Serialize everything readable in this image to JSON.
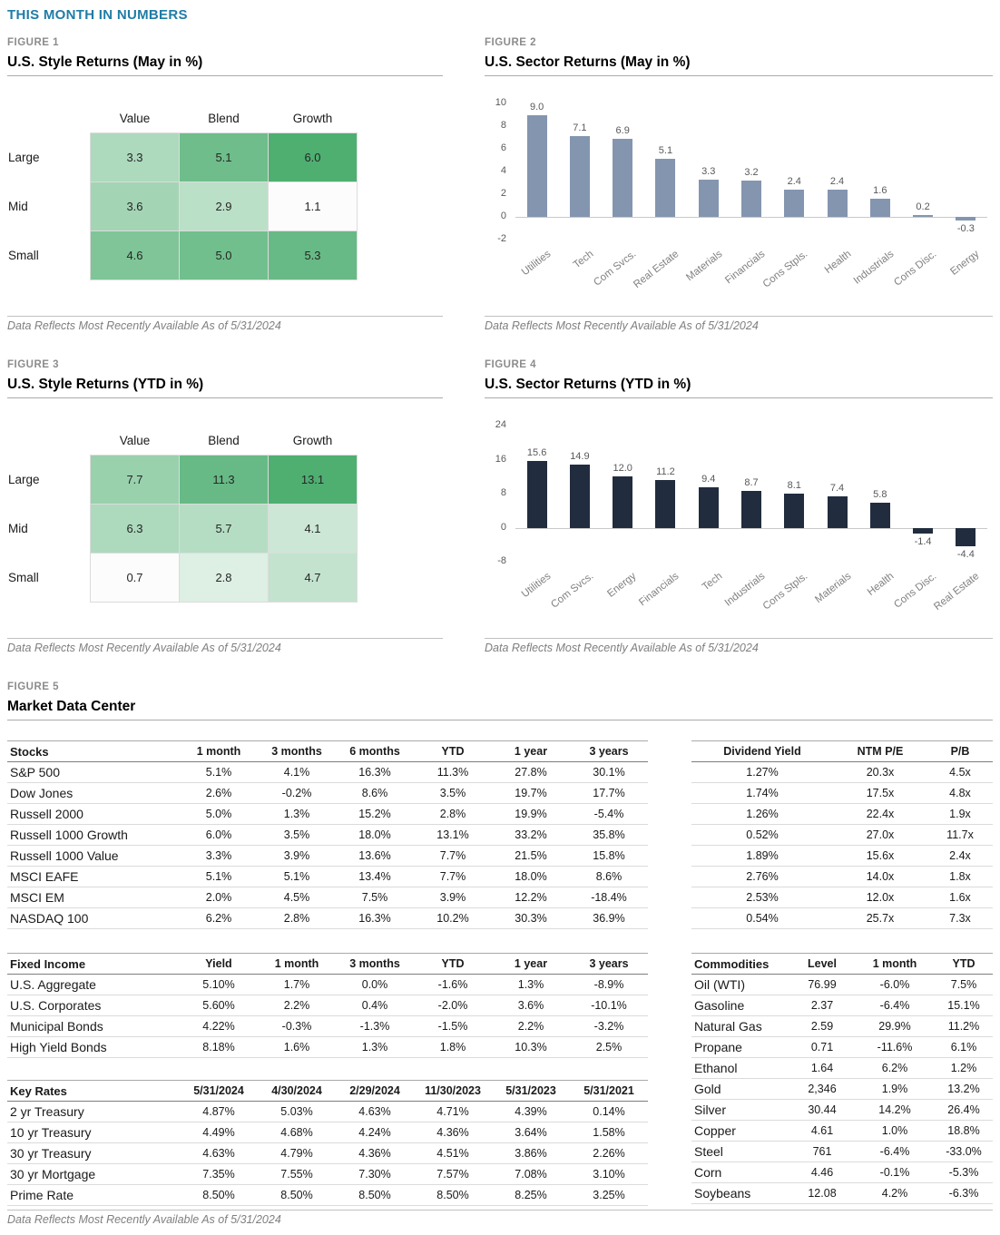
{
  "page_title": "THIS MONTH IN NUMBERS",
  "footnote": "Data Reflects Most Recently Available As of 5/31/2024",
  "figure_labels": {
    "fig1": "FIGURE 1",
    "fig2": "FIGURE 2",
    "fig3": "FIGURE 3",
    "fig4": "FIGURE 4",
    "fig5": "FIGURE 5"
  },
  "figure_titles": {
    "fig1": "U.S. Style Returns (May in %)",
    "fig2": "U.S. Sector Returns (May in %)",
    "fig3": "U.S. Style Returns (YTD in %)",
    "fig4": "U.S. Sector Returns (YTD in %)",
    "fig5": "Market Data Center"
  },
  "colors": {
    "accent_title": "#1F7CA6",
    "figure_label": "#8C8C8C",
    "heat_low": "#FBFCFB",
    "heat_high": "#4EAF71",
    "bar_may": "#8495AF",
    "bar_ytd": "#212D3E"
  },
  "chart_data": [
    {
      "id": "style_may",
      "type": "heatmap",
      "title": "U.S. Style Returns (May in %)",
      "columns": [
        "Value",
        "Blend",
        "Growth"
      ],
      "rows": [
        "Large",
        "Mid",
        "Small"
      ],
      "values": [
        [
          3.3,
          5.1,
          6.0
        ],
        [
          3.6,
          2.9,
          1.1
        ],
        [
          4.6,
          5.0,
          5.3
        ]
      ]
    },
    {
      "id": "sector_may",
      "type": "bar",
      "title": "U.S. Sector Returns (May in %)",
      "categories": [
        "Utilities",
        "Tech",
        "Com Svcs.",
        "Real Estate",
        "Materials",
        "Financials",
        "Cons Stpls.",
        "Health",
        "Industrials",
        "Cons Disc.",
        "Energy"
      ],
      "values": [
        9.0,
        7.1,
        6.9,
        5.1,
        3.3,
        3.2,
        2.4,
        2.4,
        1.6,
        0.2,
        -0.3
      ],
      "ylim": [
        -2,
        10
      ],
      "yticks": [
        10,
        8,
        6,
        4,
        2,
        0,
        -2
      ],
      "bar_color": "#8495AF",
      "grid": false,
      "legend": false
    },
    {
      "id": "style_ytd",
      "type": "heatmap",
      "title": "U.S. Style Returns (YTD in %)",
      "columns": [
        "Value",
        "Blend",
        "Growth"
      ],
      "rows": [
        "Large",
        "Mid",
        "Small"
      ],
      "values": [
        [
          7.7,
          11.3,
          13.1
        ],
        [
          6.3,
          5.7,
          4.1
        ],
        [
          0.7,
          2.8,
          4.7
        ]
      ]
    },
    {
      "id": "sector_ytd",
      "type": "bar",
      "title": "U.S. Sector Returns (YTD in %)",
      "categories": [
        "Utilities",
        "Com Svcs.",
        "Energy",
        "Financials",
        "Tech",
        "Industrials",
        "Cons Stpls.",
        "Materials",
        "Health",
        "Cons Disc.",
        "Real Estate"
      ],
      "values": [
        15.6,
        14.9,
        12.0,
        11.2,
        9.4,
        8.7,
        8.1,
        7.4,
        5.8,
        -1.4,
        -4.4
      ],
      "ylim": [
        -8,
        24
      ],
      "yticks": [
        24,
        16,
        8,
        0,
        -8
      ],
      "bar_color": "#212D3E",
      "grid": false,
      "legend": false
    }
  ],
  "tables": {
    "stocks": {
      "name_header": "Stocks",
      "col_headers": [
        "1 month",
        "3 months",
        "6 months",
        "YTD",
        "1 year",
        "3 years"
      ],
      "rows": [
        [
          "S&P 500",
          "5.1%",
          "4.1%",
          "16.3%",
          "11.3%",
          "27.8%",
          "30.1%"
        ],
        [
          "Dow Jones",
          "2.6%",
          "-0.2%",
          "8.6%",
          "3.5%",
          "19.7%",
          "17.7%"
        ],
        [
          "Russell 2000",
          "5.0%",
          "1.3%",
          "15.2%",
          "2.8%",
          "19.9%",
          "-5.4%"
        ],
        [
          "Russell 1000 Growth",
          "6.0%",
          "3.5%",
          "18.0%",
          "13.1%",
          "33.2%",
          "35.8%"
        ],
        [
          "Russell 1000 Value",
          "3.3%",
          "3.9%",
          "13.6%",
          "7.7%",
          "21.5%",
          "15.8%"
        ],
        [
          "MSCI EAFE",
          "5.1%",
          "5.1%",
          "13.4%",
          "7.7%",
          "18.0%",
          "8.6%"
        ],
        [
          "MSCI EM",
          "2.0%",
          "4.5%",
          "7.5%",
          "3.9%",
          "12.2%",
          "-18.4%"
        ],
        [
          "NASDAQ 100",
          "6.2%",
          "2.8%",
          "16.3%",
          "10.2%",
          "30.3%",
          "36.9%"
        ]
      ]
    },
    "valuation": {
      "no_name": true,
      "col_headers": [
        "Dividend Yield",
        "NTM P/E",
        "P/B"
      ],
      "rows": [
        [
          "1.27%",
          "20.3x",
          "4.5x"
        ],
        [
          "1.74%",
          "17.5x",
          "4.8x"
        ],
        [
          "1.26%",
          "22.4x",
          "1.9x"
        ],
        [
          "0.52%",
          "27.0x",
          "11.7x"
        ],
        [
          "1.89%",
          "15.6x",
          "2.4x"
        ],
        [
          "2.76%",
          "14.0x",
          "1.8x"
        ],
        [
          "2.53%",
          "12.0x",
          "1.6x"
        ],
        [
          "0.54%",
          "25.7x",
          "7.3x"
        ]
      ]
    },
    "fixed_income": {
      "name_header": "Fixed Income",
      "col_headers": [
        "Yield",
        "1 month",
        "3 months",
        "YTD",
        "1 year",
        "3 years"
      ],
      "rows": [
        [
          "U.S. Aggregate",
          "5.10%",
          "1.7%",
          "0.0%",
          "-1.6%",
          "1.3%",
          "-8.9%"
        ],
        [
          "U.S. Corporates",
          "5.60%",
          "2.2%",
          "0.4%",
          "-2.0%",
          "3.6%",
          "-10.1%"
        ],
        [
          "Municipal Bonds",
          "4.22%",
          "-0.3%",
          "-1.3%",
          "-1.5%",
          "2.2%",
          "-3.2%"
        ],
        [
          "High Yield Bonds",
          "8.18%",
          "1.6%",
          "1.3%",
          "1.8%",
          "10.3%",
          "2.5%"
        ]
      ]
    },
    "key_rates": {
      "name_header": "Key Rates",
      "col_headers": [
        "5/31/2024",
        "4/30/2024",
        "2/29/2024",
        "11/30/2023",
        "5/31/2023",
        "5/31/2021"
      ],
      "rows": [
        [
          "2 yr Treasury",
          "4.87%",
          "5.03%",
          "4.63%",
          "4.71%",
          "4.39%",
          "0.14%"
        ],
        [
          "10 yr Treasury",
          "4.49%",
          "4.68%",
          "4.24%",
          "4.36%",
          "3.64%",
          "1.58%"
        ],
        [
          "30 yr Treasury",
          "4.63%",
          "4.79%",
          "4.36%",
          "4.51%",
          "3.86%",
          "2.26%"
        ],
        [
          "30 yr Mortgage",
          "7.35%",
          "7.55%",
          "7.30%",
          "7.57%",
          "7.08%",
          "3.10%"
        ],
        [
          "Prime Rate",
          "8.50%",
          "8.50%",
          "8.50%",
          "8.50%",
          "8.25%",
          "3.25%"
        ]
      ]
    },
    "commodities": {
      "name_header": "Commodities",
      "col_headers": [
        "Level",
        "1 month",
        "YTD"
      ],
      "rows": [
        [
          "Oil (WTI)",
          "76.99",
          "-6.0%",
          "7.5%"
        ],
        [
          "Gasoline",
          "2.37",
          "-6.4%",
          "15.1%"
        ],
        [
          "Natural Gas",
          "2.59",
          "29.9%",
          "11.2%"
        ],
        [
          "Propane",
          "0.71",
          "-11.6%",
          "6.1%"
        ],
        [
          "Ethanol",
          "1.64",
          "6.2%",
          "1.2%"
        ],
        [
          "Gold",
          "2,346",
          "1.9%",
          "13.2%"
        ],
        [
          "Silver",
          "30.44",
          "14.2%",
          "26.4%"
        ],
        [
          "Copper",
          "4.61",
          "1.0%",
          "18.8%"
        ],
        [
          "Steel",
          "761",
          "-6.4%",
          "-33.0%"
        ],
        [
          "Corn",
          "4.46",
          "-0.1%",
          "-5.3%"
        ],
        [
          "Soybeans",
          "12.08",
          "4.2%",
          "-6.3%"
        ]
      ]
    }
  }
}
